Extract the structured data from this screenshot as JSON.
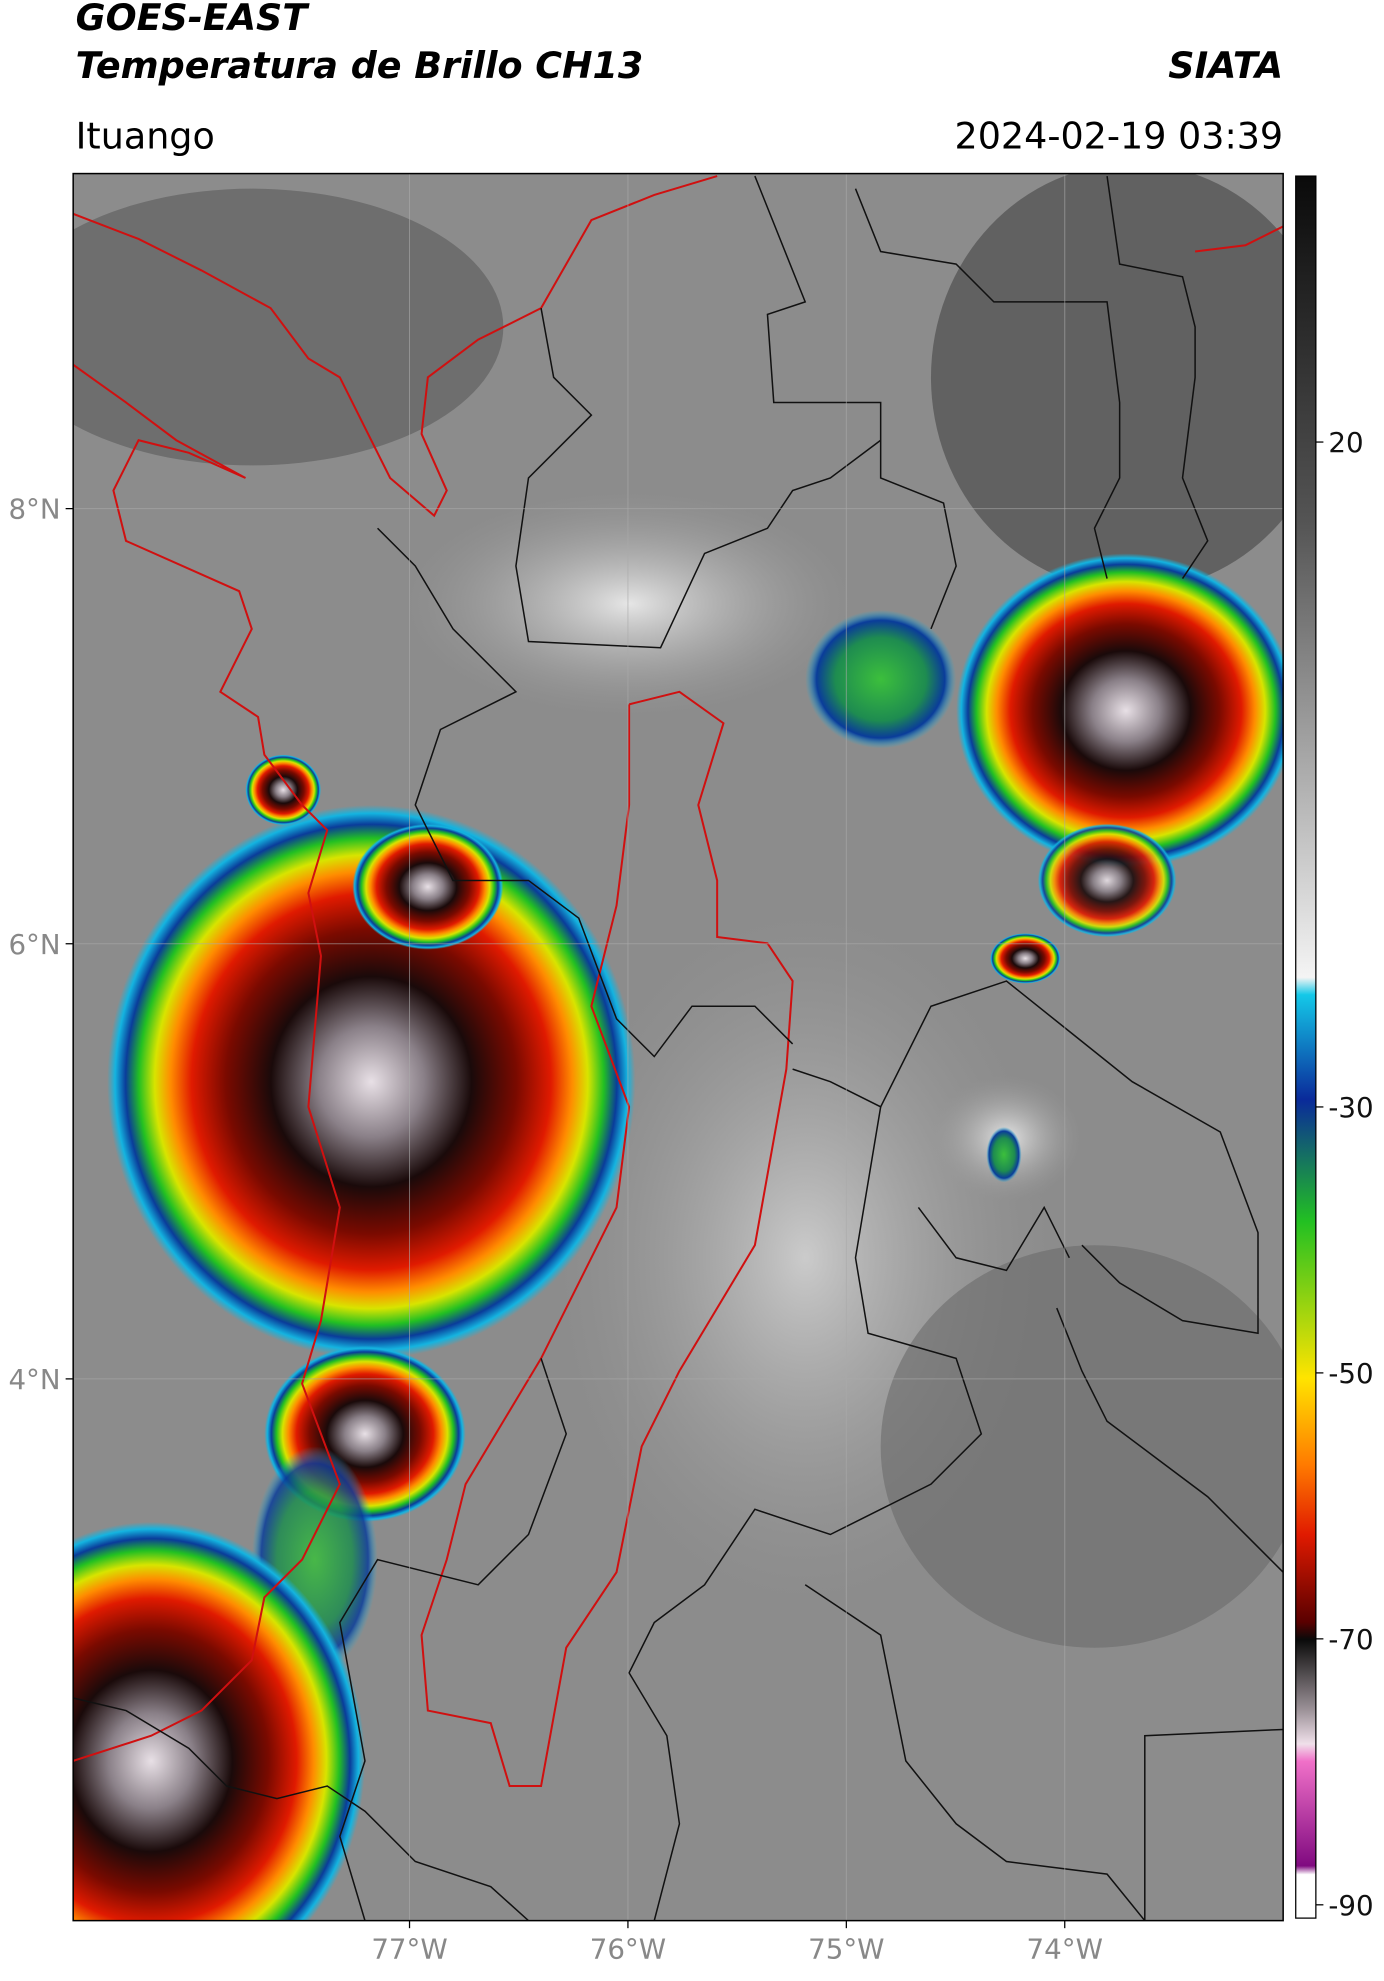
{
  "header": {
    "title": "GOES-EAST",
    "subtitle": "Temperatura de Brillo CH13",
    "brand": "SIATA",
    "location": "Ituango",
    "datetime": "2024-02-19 03:39"
  },
  "map": {
    "xlim": [
      -78.54,
      -73.0
    ],
    "ylim": [
      1.51,
      9.54
    ],
    "xticks": [
      {
        "value": -77,
        "label": "77°W"
      },
      {
        "value": -76,
        "label": "76°W"
      },
      {
        "value": -75,
        "label": "75°W"
      },
      {
        "value": -74,
        "label": "74°W"
      }
    ],
    "yticks": [
      {
        "value": 8,
        "label": "8°N"
      },
      {
        "value": 6,
        "label": "6°N"
      },
      {
        "value": 4,
        "label": "4°N"
      }
    ],
    "grid": true
  },
  "colorbar": {
    "clim": [
      -91,
      40
    ],
    "ticks": [
      20,
      -30,
      -50,
      -70,
      -90
    ]
  }
}
